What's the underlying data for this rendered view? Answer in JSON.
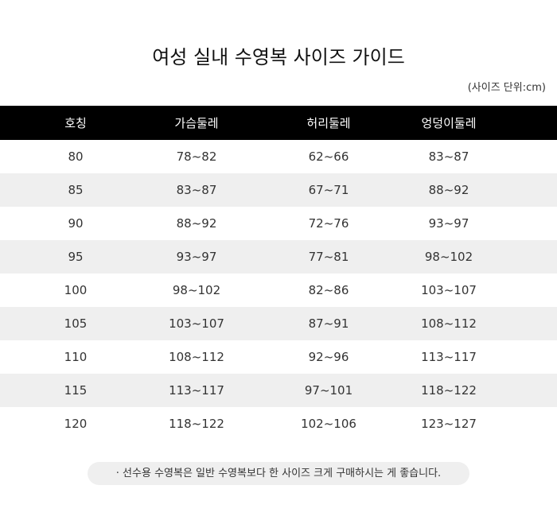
{
  "title": "여성 실내 수영복 사이즈  가이드",
  "unit_note": "(사이즈 단위:cm)",
  "table": {
    "headers": [
      "호칭",
      "가슴둘레",
      "허리둘레",
      "엉덩이둘레"
    ],
    "rows": [
      [
        "80",
        "78~82",
        "62~66",
        "83~87"
      ],
      [
        "85",
        "83~87",
        "67~71",
        "88~92"
      ],
      [
        "90",
        "88~92",
        "72~76",
        "93~97"
      ],
      [
        "95",
        "93~97",
        "77~81",
        "98~102"
      ],
      [
        "100",
        "98~102",
        "82~86",
        "103~107"
      ],
      [
        "105",
        "103~107",
        "87~91",
        "108~112"
      ],
      [
        "110",
        "108~112",
        "92~96",
        "113~117"
      ],
      [
        "115",
        "113~117",
        "97~101",
        "118~122"
      ],
      [
        "120",
        "118~122",
        "102~106",
        "123~127"
      ]
    ]
  },
  "footnote": "· 선수용 수영복은 일반 수영복보다 한 사이즈 크게 구매하시는 게 좋습니다.",
  "colors": {
    "header_bg": "#000000",
    "alt_row_bg": "#efefef",
    "note_bg": "#efefef"
  }
}
